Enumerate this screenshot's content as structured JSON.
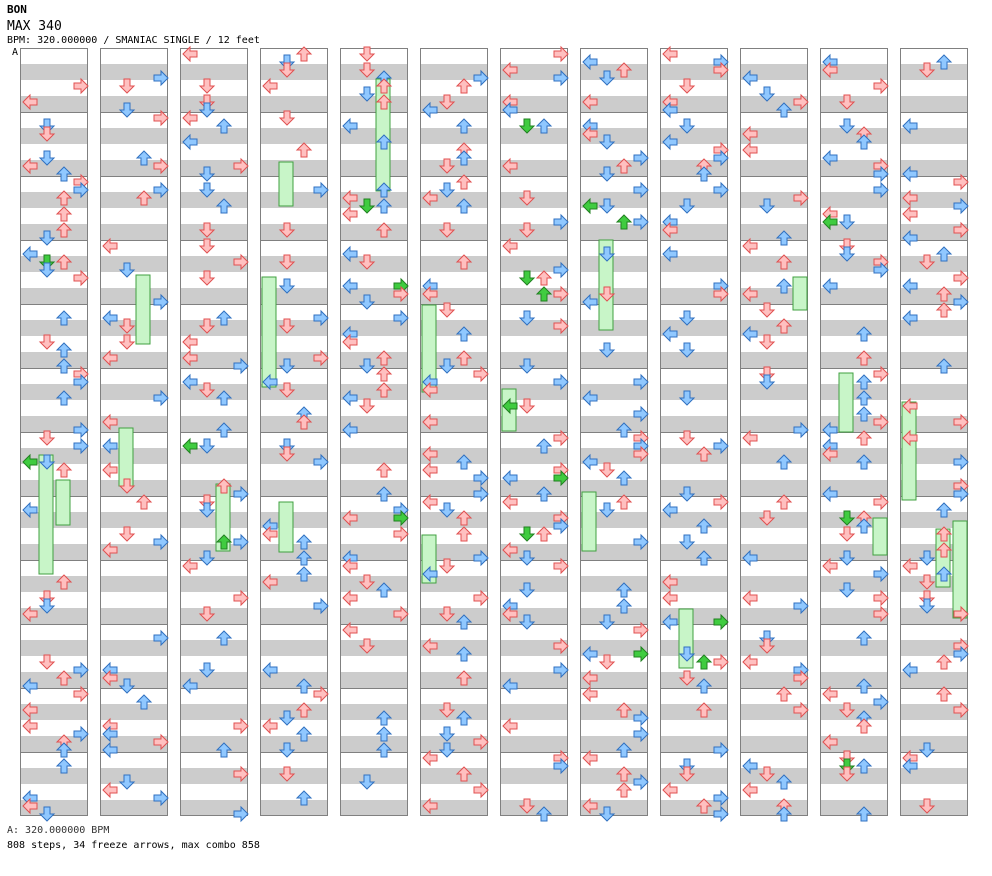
{
  "song": {
    "title": "BON",
    "difficulty": "MAX 340",
    "info": "BPM: 320.000000 / SMANIAC SINGLE / 12 feet"
  },
  "bpm_marker": "A",
  "footer": {
    "bpm_line": "A: 320.000000 BPM",
    "stats_line": "808 steps, 34 freeze arrows, max combo 858"
  },
  "colors": {
    "stripe": "#cccccc",
    "border": "#808080",
    "down_up_fill": "#ffc0c0",
    "down_up_stroke": "#e05050",
    "left_right_fill": "#90c8ff",
    "left_right_stroke": "#3070c0",
    "freeze_fill": "#c8f5c8",
    "freeze_stroke": "#40a040",
    "shock_green": "#40cc40"
  },
  "chart_data": {
    "type": "step-chart",
    "columns": 12,
    "measures_per_column": 12,
    "total_measures": 144,
    "steps": 808,
    "freeze_arrows": 34,
    "max_combo": 858
  }
}
